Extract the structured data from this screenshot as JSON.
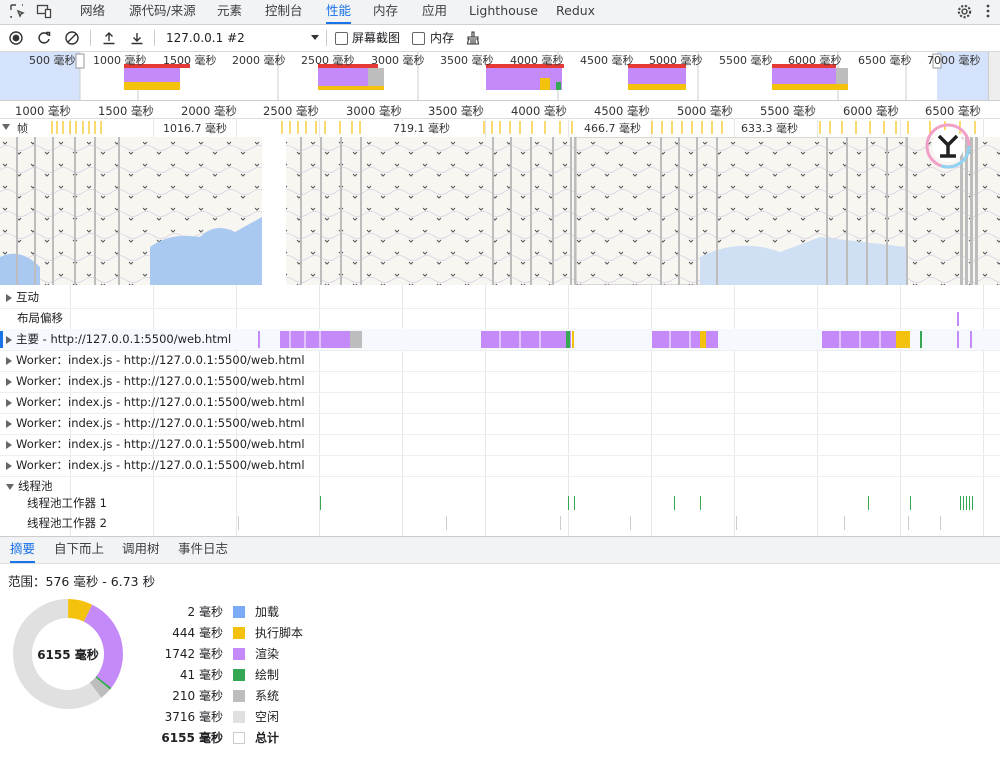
{
  "devtools_tabs": [
    "网络",
    "源代码/来源",
    "元素",
    "控制台",
    "性能",
    "内存",
    "应用",
    "Lighthouse",
    "Redux"
  ],
  "active_tab": "性能",
  "toolbar": {
    "recording_select": "127.0.0.1 #2",
    "screenshots_label": "屏幕截图",
    "memory_label": "内存"
  },
  "overview_labels": [
    "500 毫秒",
    "1000 毫秒",
    "1500 毫秒",
    "2000 毫秒",
    "2500 毫秒",
    "3000 毫秒",
    "3500 毫秒",
    "4000 毫秒",
    "4500 毫秒",
    "5000 毫秒",
    "5500 毫秒",
    "6000 毫秒",
    "6500 毫秒",
    "7000 毫秒"
  ],
  "ruler_labels": [
    "1000 毫秒",
    "1500 毫秒",
    "2000 毫秒",
    "2500 毫秒",
    "3000 毫秒",
    "3500 毫秒",
    "4000 毫秒",
    "4500 毫秒",
    "5000 毫秒",
    "5500 毫秒",
    "6000 毫秒",
    "6500 毫秒"
  ],
  "frames": {
    "label": "帧",
    "durations": [
      "1016.7 毫秒",
      "719.1 毫秒",
      "466.7 毫秒",
      "633.3 毫秒"
    ]
  },
  "tracks": {
    "interactions": "互动",
    "layout_shift": "布局偏移",
    "main": "主要 - http://127.0.0.1:5500/web.html",
    "workers": [
      "Worker：index.js - http://127.0.0.1:5500/web.html",
      "Worker：index.js - http://127.0.0.1:5500/web.html",
      "Worker：index.js - http://127.0.0.1:5500/web.html",
      "Worker：index.js - http://127.0.0.1:5500/web.html",
      "Worker：index.js - http://127.0.0.1:5500/web.html",
      "Worker：index.js - http://127.0.0.1:5500/web.html"
    ],
    "thread_pool": "线程池",
    "thread_pool_workers": [
      "线程池工作器 1",
      "线程池工作器 2"
    ]
  },
  "bottom_tabs": [
    "摘要",
    "自下而上",
    "调用树",
    "事件日志"
  ],
  "summary": {
    "range": "范围：576 毫秒 - 6.73 秒",
    "total_center": "6155 毫秒",
    "rows": [
      {
        "value": "2 毫秒",
        "label": "加载",
        "color": "#7baaf7",
        "ms": 2
      },
      {
        "value": "444 毫秒",
        "label": "执行脚本",
        "color": "#f4c20d",
        "ms": 444
      },
      {
        "value": "1742 毫秒",
        "label": "渲染",
        "color": "#c58af9",
        "ms": 1742
      },
      {
        "value": "41 毫秒",
        "label": "绘制",
        "color": "#34a853",
        "ms": 41
      },
      {
        "value": "210 毫秒",
        "label": "系统",
        "color": "#bdbdbd",
        "ms": 210
      },
      {
        "value": "3716 毫秒",
        "label": "空闲",
        "color": "#e0e0e0",
        "ms": 3716
      }
    ],
    "total": {
      "value": "6155 毫秒",
      "label": "总计"
    }
  }
}
